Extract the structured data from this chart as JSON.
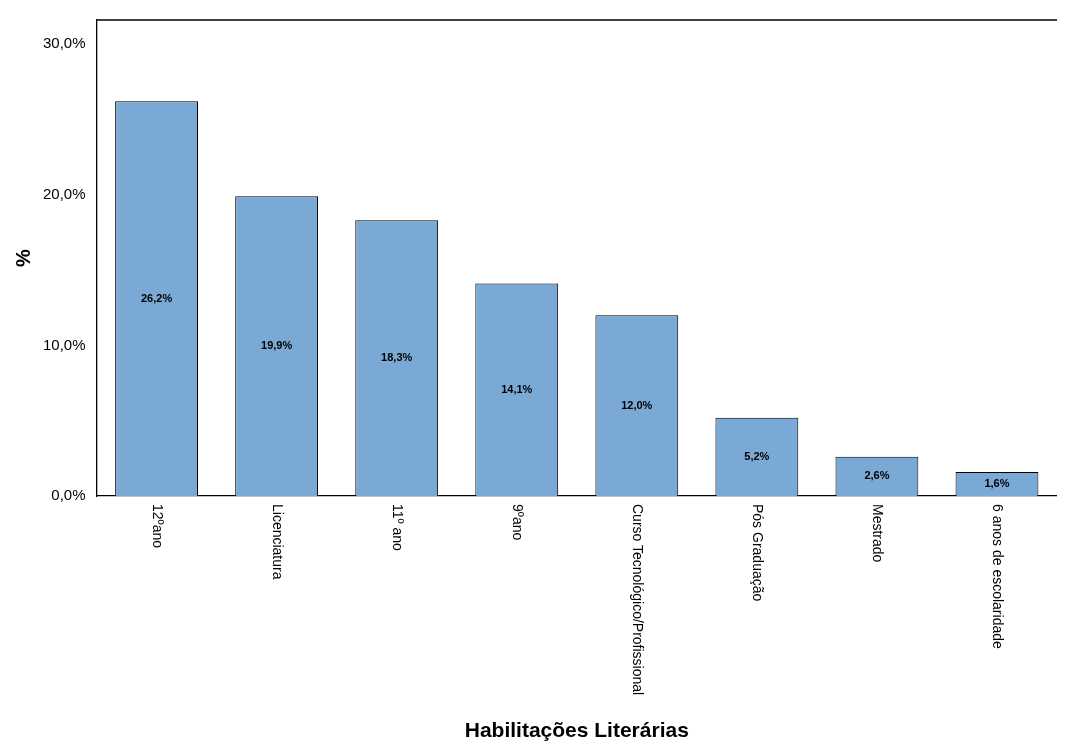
{
  "chart_data": {
    "type": "bar",
    "xlabel": "Habilitações Literárias",
    "ylabel": "%",
    "categories": [
      "12ºano",
      "Licenciatura",
      "11º ano",
      "9ºano",
      "Curso Tecnológico/Profissional",
      "Pós Graduação",
      "Mestrado",
      "6 anos de escolaridade"
    ],
    "values": [
      26.2,
      19.9,
      18.3,
      14.1,
      12.0,
      5.2,
      2.6,
      1.6
    ],
    "value_labels": [
      "26,2%",
      "19,9%",
      "18,3%",
      "14,1%",
      "12,0%",
      "5,2%",
      "2,6%",
      "1,6%"
    ],
    "color": "#7ba9d6",
    "ylim": [
      0,
      31.6
    ],
    "yticks": [
      {
        "value": 0,
        "label": "0,0%"
      },
      {
        "value": 10,
        "label": "10,0%"
      },
      {
        "value": 20,
        "label": "20,0%"
      },
      {
        "value": 30,
        "label": "30,0%"
      }
    ],
    "grid": false,
    "legend": false
  }
}
